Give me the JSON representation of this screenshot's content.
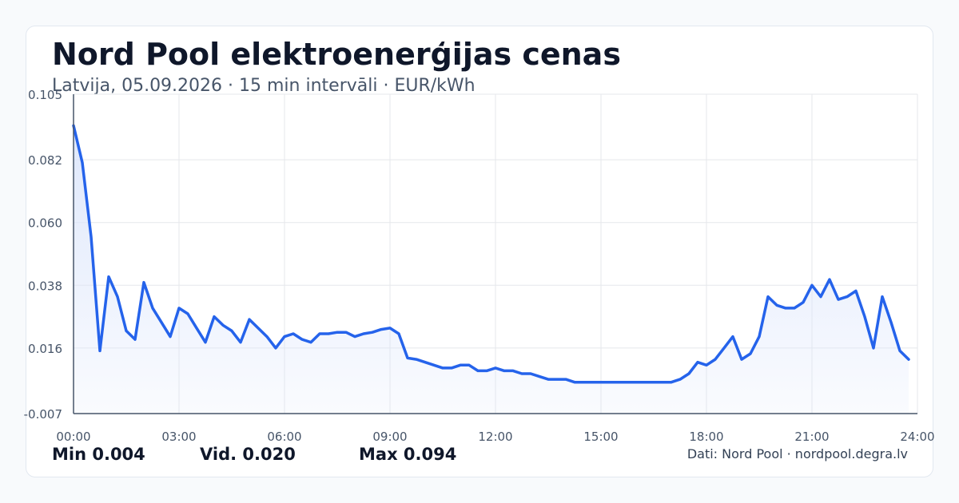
{
  "header": {
    "title": "Nord Pool elektroenerģijas cenas",
    "subtitle": "Latvija, 05.09.2026 · 15 min intervāli · EUR/kWh"
  },
  "stats": {
    "min_label": "Min 0.004",
    "avg_label": "Vid. 0.020",
    "max_label": "Max 0.094"
  },
  "footer": {
    "source": "Dati: Nord Pool · nordpool.degra.lv"
  },
  "colors": {
    "line": "#2563eb",
    "fill": "#dbe5fb",
    "grid": "#e5e7eb",
    "axis": "#475569",
    "tick_text": "#475569"
  },
  "chart_data": {
    "type": "area",
    "title": "Nord Pool elektroenerģijas cenas",
    "xlabel": "",
    "ylabel": "",
    "xlim": [
      0,
      24
    ],
    "ylim": [
      -0.007,
      0.105
    ],
    "grid": true,
    "x_ticks": [
      "00:00",
      "03:00",
      "06:00",
      "09:00",
      "12:00",
      "15:00",
      "18:00",
      "21:00",
      "24:00"
    ],
    "y_ticks": [
      "0.105",
      "0.082",
      "0.060",
      "0.038",
      "0.016",
      "-0.007"
    ],
    "series": [
      {
        "x": [
          0,
          0.25,
          0.5,
          0.75,
          1.0,
          1.25,
          1.5,
          1.75,
          2.0,
          2.25,
          2.5,
          2.75,
          3.0,
          3.25,
          3.5,
          3.75,
          4.0,
          4.25,
          4.5,
          4.75,
          5.0,
          5.25,
          5.5,
          5.75,
          6.0,
          6.25,
          6.5,
          6.75,
          7.0,
          7.25,
          7.5,
          7.75,
          8.0,
          8.25,
          8.5,
          8.75,
          9.0,
          9.25,
          9.5,
          9.75,
          10.0,
          10.25,
          10.5,
          10.75,
          11.0,
          11.25,
          11.5,
          11.75,
          12.0,
          12.25,
          12.5,
          12.75,
          13.0,
          13.25,
          13.5,
          13.75,
          14.0,
          14.25,
          17.0,
          17.25,
          17.5,
          17.75,
          18.0,
          18.25,
          18.5,
          18.75,
          19.0,
          19.25,
          19.5,
          19.75,
          20.0,
          20.25,
          20.5,
          20.75,
          21.0,
          21.25,
          21.5,
          21.75,
          22.0,
          22.25,
          22.5,
          22.75,
          23.0,
          23.25,
          23.5,
          23.75
        ],
        "values": [
          0.094,
          0.081,
          0.055,
          0.015,
          0.041,
          0.034,
          0.022,
          0.019,
          0.039,
          0.03,
          0.025,
          0.02,
          0.03,
          0.028,
          0.023,
          0.018,
          0.027,
          0.024,
          0.022,
          0.018,
          0.026,
          0.023,
          0.02,
          0.016,
          0.02,
          0.021,
          0.019,
          0.018,
          0.021,
          0.021,
          0.0215,
          0.0215,
          0.02,
          0.021,
          0.0215,
          0.0225,
          0.023,
          0.021,
          0.0125,
          0.012,
          0.011,
          0.01,
          0.009,
          0.009,
          0.01,
          0.01,
          0.008,
          0.008,
          0.009,
          0.008,
          0.008,
          0.007,
          0.007,
          0.006,
          0.005,
          0.005,
          0.005,
          0.004,
          0.004,
          0.005,
          0.007,
          0.011,
          0.01,
          0.012,
          0.016,
          0.02,
          0.012,
          0.014,
          0.02,
          0.034,
          0.031,
          0.03,
          0.03,
          0.032,
          0.038,
          0.034,
          0.04,
          0.033,
          0.034,
          0.036,
          0.027,
          0.016,
          0.034,
          0.025,
          0.015,
          0.012
        ]
      }
    ]
  }
}
